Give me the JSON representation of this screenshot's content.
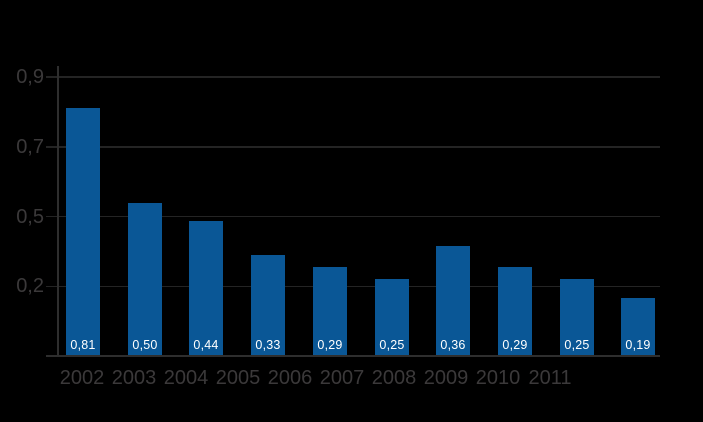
{
  "chart_data": {
    "type": "bar",
    "title": "",
    "xlabel": "",
    "ylabel": "",
    "categories": [
      "2002",
      "2003",
      "2004",
      "2005",
      "2006",
      "2007",
      "2008",
      "2009",
      "2010",
      "2011"
    ],
    "values": [
      0.81,
      0.5,
      0.44,
      0.33,
      0.29,
      0.25,
      0.36,
      0.29,
      0.25,
      0.19
    ],
    "bar_value_labels": [
      "0,81",
      "0,50",
      "0,44",
      "0,33",
      "0,29",
      "0,25",
      "0,36",
      "0,29",
      "0,25",
      "0,19"
    ],
    "y_tick_labels": [
      "0,9",
      "0,7",
      "0,5",
      "0,2"
    ],
    "ylim": [
      0,
      0.95
    ],
    "grid": true,
    "legend_position": "none",
    "decimal_separator": ",",
    "colors": {
      "background": "#000000",
      "bar": "#0a5796",
      "bar_value_text": "#ffffff",
      "gridline": "#242424",
      "axis_line": "#2e2e2e",
      "tick_text": "#3b393a"
    }
  }
}
